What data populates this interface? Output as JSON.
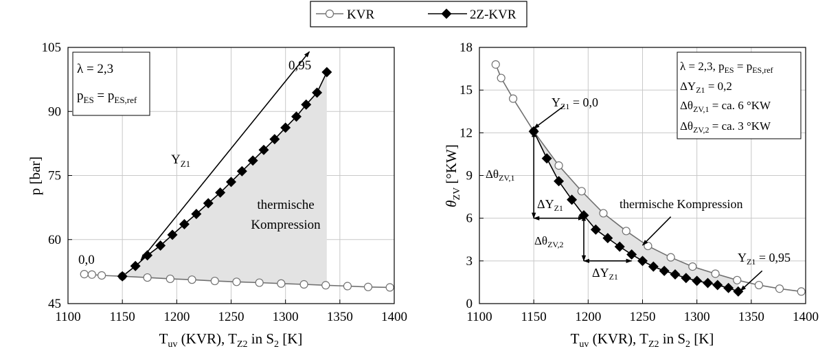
{
  "legend": {
    "position": "top-center",
    "items": [
      {
        "label": "KVR",
        "marker": "open-circle"
      },
      {
        "label": "2Z-KVR",
        "marker": "filled-diamond"
      }
    ]
  },
  "colors": {
    "kvr_line": "#707070",
    "kvr_marker_fill": "#ffffff",
    "zkvr_line": "#000000",
    "zkvr_marker_fill": "#000000",
    "shade": "#e3e3e3",
    "grid": "#c8c8c8"
  },
  "chart_data": [
    {
      "type": "line",
      "xlabel": "T_uv (KVR), T_Z2 in S_2 [K]",
      "ylabel": "p [bar]",
      "xlim": [
        1100,
        1400
      ],
      "ylim": [
        45,
        105
      ],
      "xticks": [
        1100,
        1150,
        1200,
        1250,
        1300,
        1350,
        1400
      ],
      "yticks": [
        45,
        60,
        75,
        90,
        105
      ],
      "grid": true,
      "info_box": [
        "λ = 2,3",
        "p_ES = p_ES,ref"
      ],
      "annotations": [
        {
          "text": "0,95",
          "x": 1328,
          "y": 102.2
        },
        {
          "text": "0,0",
          "x": 1141,
          "y": 53.5
        },
        {
          "text": "Y_Z1",
          "x": 1180,
          "y": 82.0
        },
        {
          "text": "thermische",
          "x": 1282,
          "y": 69.5
        },
        {
          "text": "Kompression",
          "x": 1282,
          "y": 64.8
        }
      ],
      "arrows": [
        {
          "from": [
            1167,
            55.2
          ],
          "to": [
            1322,
            104.0
          ],
          "heads": "both"
        }
      ],
      "shaded_region": {
        "label": "thermische Kompression",
        "between": [
          "2Z-KVR",
          "KVR"
        ]
      },
      "series": [
        {
          "name": "KVR",
          "x": [
            1115,
            1122,
            1131,
            1150,
            1173,
            1194,
            1214,
            1235,
            1255,
            1276,
            1296,
            1317,
            1337,
            1357,
            1376,
            1396
          ],
          "y": [
            51.9,
            51.8,
            51.6,
            51.4,
            51.1,
            50.8,
            50.6,
            50.3,
            50.1,
            49.9,
            49.7,
            49.5,
            49.3,
            49.1,
            48.9,
            48.8
          ]
        },
        {
          "name": "2Z-KVR",
          "x": [
            1150,
            1162,
            1173,
            1185,
            1196,
            1207,
            1218,
            1229,
            1240,
            1250,
            1260,
            1270,
            1280,
            1290,
            1300,
            1310,
            1319,
            1329,
            1338
          ],
          "y": [
            51.4,
            53.8,
            56.3,
            58.6,
            61.1,
            63.6,
            66.0,
            68.5,
            71.0,
            73.5,
            76.0,
            78.5,
            81.0,
            83.5,
            86.2,
            88.8,
            91.6,
            94.4,
            99.2
          ]
        }
      ]
    },
    {
      "type": "line",
      "xlabel": "T_uv (KVR), T_Z2 in S_2 [K]",
      "ylabel": "θ_ZV [°KW]",
      "xlim": [
        1100,
        1400
      ],
      "ylim": [
        0,
        18
      ],
      "xticks": [
        1100,
        1150,
        1200,
        1250,
        1300,
        1350,
        1400
      ],
      "yticks": [
        0,
        3,
        6,
        9,
        12,
        15,
        18
      ],
      "grid": true,
      "info_box": [
        "λ = 2,3, p_ES = p_ES,ref",
        "ΔY_Z1 = 0,2",
        "Δθ_ZV,1 = ca. 6 °KW",
        "Δθ_ZV,2 = ca. 3 °KW"
      ],
      "annotations": [
        {
          "text": "Y_Z1 = 0,0",
          "x": 1174,
          "y": 13.4
        },
        {
          "text": "Δθ_ZV,1",
          "x": 1124,
          "y": 8.4
        },
        {
          "text": "ΔY_Z1",
          "x": 1172,
          "y": 5.7
        },
        {
          "text": "Δθ_ZV,2",
          "x": 1173,
          "y": 4.1
        },
        {
          "text": "ΔY_Z1",
          "x": 1220,
          "y": 1.4
        },
        {
          "text": "thermische Kompression",
          "x": 1282,
          "y": 6.8
        },
        {
          "text": "Y_Z1 = 0,95",
          "x": 1340,
          "y": 3.15
        }
      ],
      "arrows": [
        {
          "from": [
            1150,
            12.1
          ],
          "to": [
            1150,
            6.0
          ],
          "heads": "both"
        },
        {
          "from": [
            1150,
            6.0
          ],
          "to": [
            1196,
            6.0
          ],
          "heads": "both"
        },
        {
          "from": [
            1196,
            6.2
          ],
          "to": [
            1196,
            3.0
          ],
          "heads": "both"
        },
        {
          "from": [
            1196,
            3.0
          ],
          "to": [
            1240,
            3.0
          ],
          "heads": "both"
        },
        {
          "from": [
            1178,
            13.9
          ],
          "to": [
            1150,
            12.3
          ],
          "heads": "end"
        },
        {
          "from": [
            1276,
            6.1
          ],
          "to": [
            1250,
            4.1
          ],
          "heads": "end"
        },
        {
          "from": [
            1360,
            2.3
          ],
          "to": [
            1340,
            0.9
          ],
          "heads": "end"
        }
      ],
      "shaded_region": {
        "label": "thermische Kompression",
        "between": [
          "2Z-KVR",
          "KVR"
        ]
      },
      "series": [
        {
          "name": "KVR",
          "x": [
            1115,
            1120,
            1131,
            1150,
            1173,
            1194,
            1214,
            1235,
            1255,
            1276,
            1296,
            1317,
            1337,
            1357,
            1376,
            1396
          ],
          "y": [
            16.8,
            15.85,
            14.4,
            12.1,
            9.7,
            7.9,
            6.35,
            5.1,
            4.05,
            3.25,
            2.6,
            2.1,
            1.65,
            1.3,
            1.05,
            0.85
          ]
        },
        {
          "name": "2Z-KVR",
          "x": [
            1150,
            1162,
            1173,
            1185,
            1196,
            1207,
            1218,
            1229,
            1240,
            1250,
            1260,
            1270,
            1280,
            1290,
            1300,
            1310,
            1319,
            1329,
            1338
          ],
          "y": [
            12.1,
            10.2,
            8.6,
            7.3,
            6.2,
            5.2,
            4.6,
            4.0,
            3.45,
            3.0,
            2.6,
            2.3,
            2.05,
            1.8,
            1.6,
            1.45,
            1.3,
            1.1,
            0.85
          ]
        }
      ]
    }
  ]
}
